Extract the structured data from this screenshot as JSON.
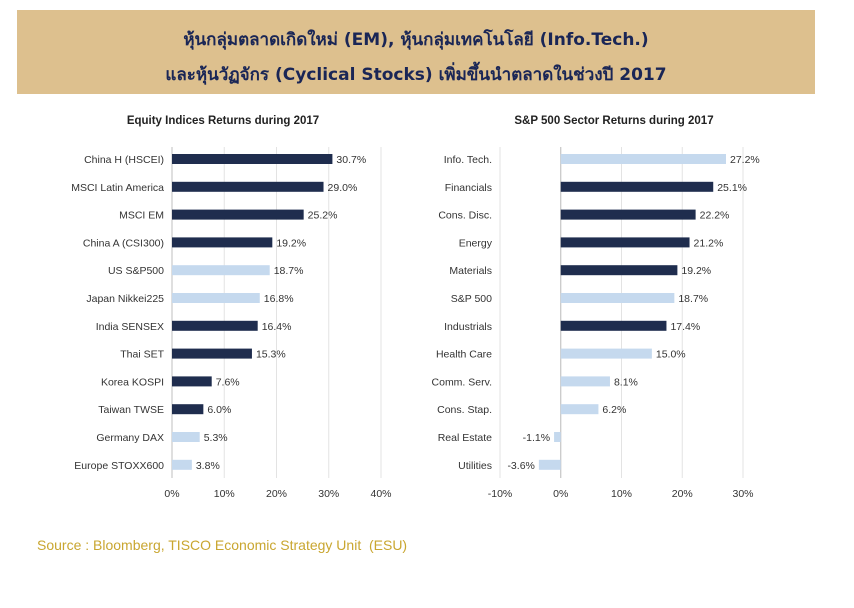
{
  "header": {
    "line1": "หุ้นกลุ่มตลาดเกิดใหม่ (EM), หุ้นกลุ่มเทคโนโลยี (Info.Tech.)",
    "line2": "และหุ้นวัฏจักร (Cyclical Stocks) เพิ่มขึ้นนำตลาดในช่วงปี 2017"
  },
  "colors": {
    "dark": "#1f2d4e",
    "light": "#c5d9ee",
    "banner": "#ddc08e",
    "source": "#c9a630"
  },
  "chart_data": [
    {
      "type": "bar",
      "orientation": "horizontal",
      "title": "Equity Indices Returns during 2017",
      "categories": [
        "China H (HSCEI)",
        "MSCI Latin America",
        "MSCI EM",
        "China A (CSI300)",
        "US S&P500",
        "Japan Nikkei225",
        "India SENSEX",
        "Thai SET",
        "Korea KOSPI",
        "Taiwan TWSE",
        "Germany DAX",
        "Europe STOXX600"
      ],
      "values": [
        30.7,
        29.0,
        25.2,
        19.2,
        18.7,
        16.8,
        16.4,
        15.3,
        7.6,
        6.0,
        5.3,
        3.8
      ],
      "labels": [
        "30.7%",
        "29.0%",
        "25.2%",
        "19.2%",
        "18.7%",
        "16.8%",
        "16.4%",
        "15.3%",
        "7.6%",
        "6.0%",
        "5.3%",
        "3.8%"
      ],
      "highlight": [
        "dark",
        "dark",
        "dark",
        "dark",
        "light",
        "light",
        "dark",
        "dark",
        "dark",
        "dark",
        "light",
        "light"
      ],
      "xlim": [
        0,
        40
      ],
      "ticks": [
        0,
        10,
        20,
        30,
        40
      ],
      "tick_labels": [
        "0%",
        "10%",
        "20%",
        "30%",
        "40%"
      ],
      "grid": true
    },
    {
      "type": "bar",
      "orientation": "horizontal",
      "title": "S&P 500 Sector Returns during 2017",
      "categories": [
        "Info. Tech.",
        "Financials",
        "Cons. Disc.",
        "Energy",
        "Materials",
        "S&P 500",
        "Industrials",
        "Health Care",
        "Comm. Serv.",
        "Cons. Stap.",
        "Real Estate",
        "Utilities"
      ],
      "values": [
        27.2,
        25.1,
        22.2,
        21.2,
        19.2,
        18.7,
        17.4,
        15.0,
        8.1,
        6.2,
        -1.1,
        -3.6
      ],
      "labels": [
        "27.2%",
        "25.1%",
        "22.2%",
        "21.2%",
        "19.2%",
        "18.7%",
        "17.4%",
        "15.0%",
        "8.1%",
        "6.2%",
        "-1.1%",
        "-3.6%"
      ],
      "highlight": [
        "light",
        "dark",
        "dark",
        "dark",
        "dark",
        "light",
        "dark",
        "light",
        "light",
        "light",
        "light",
        "light"
      ],
      "xlim": [
        -10,
        30
      ],
      "ticks": [
        -10,
        0,
        10,
        20,
        30
      ],
      "tick_labels": [
        "-10%",
        "0%",
        "10%",
        "20%",
        "30%"
      ],
      "grid": true
    }
  ],
  "source": "Source : Bloomberg, TISCO Economic Strategy Unit  (ESU)"
}
